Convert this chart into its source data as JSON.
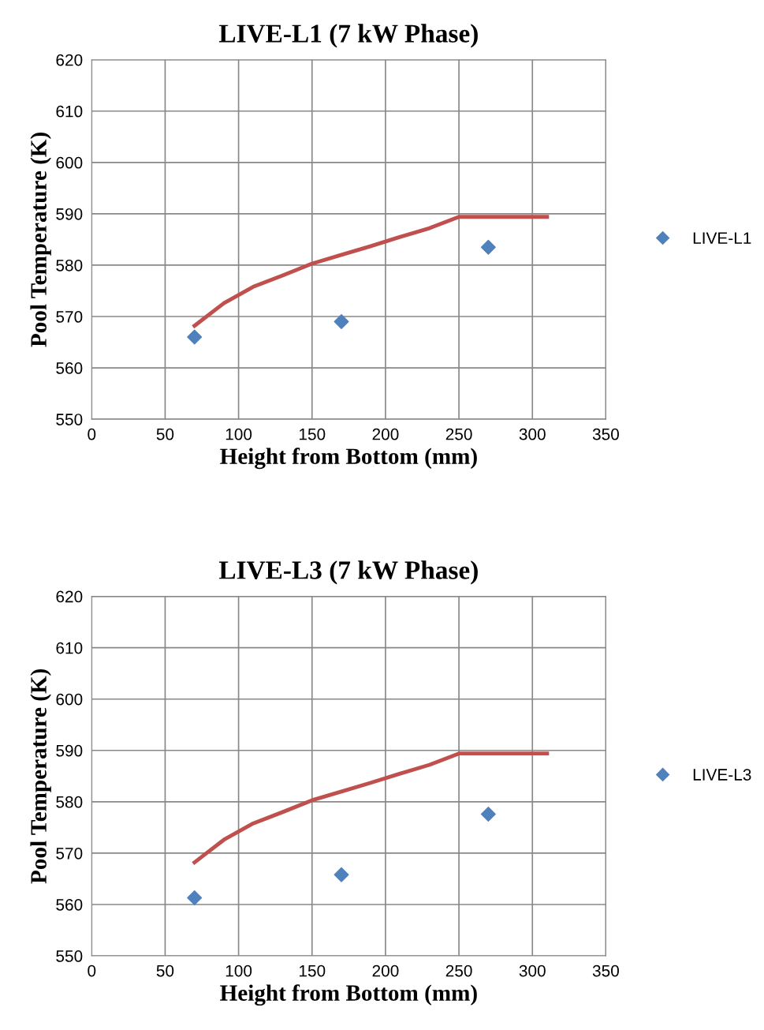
{
  "chart_data": [
    {
      "type": "scatter",
      "title": "LIVE-L1 (7 kW Phase)",
      "xlabel": "Height from Bottom (mm)",
      "ylabel": "Pool Temperature (K)",
      "xlim": [
        0,
        350
      ],
      "xticks": [
        0,
        50,
        100,
        150,
        200,
        250,
        300,
        350
      ],
      "ylim": [
        550,
        620
      ],
      "yticks": [
        550,
        560,
        570,
        580,
        590,
        600,
        610,
        620
      ],
      "grid": true,
      "legend": "right",
      "series": [
        {
          "name": "LIVE-L1",
          "marker": "diamond",
          "color": "#4f81bd",
          "x": [
            70,
            170,
            270
          ],
          "values": [
            566,
            569,
            583.5
          ]
        },
        {
          "type": "line",
          "color": "#c0504d",
          "marker": "none",
          "x": [
            70,
            90,
            110,
            130,
            150,
            170,
            190,
            210,
            230,
            250,
            310
          ],
          "values": [
            568.2,
            572.6,
            575.8,
            578,
            580.3,
            582,
            583.7,
            585.5,
            587.2,
            589.4,
            589.4
          ]
        }
      ]
    },
    {
      "type": "scatter",
      "title": "LIVE-L3 (7 kW Phase)",
      "xlabel": "Height from Bottom (mm)",
      "ylabel": "Pool Temperature (K)",
      "xlim": [
        0,
        350
      ],
      "xticks": [
        0,
        50,
        100,
        150,
        200,
        250,
        300,
        350
      ],
      "ylim": [
        550,
        620
      ],
      "yticks": [
        550,
        560,
        570,
        580,
        590,
        600,
        610,
        620
      ],
      "grid": true,
      "legend": "right",
      "series": [
        {
          "name": "LIVE-L3",
          "marker": "diamond",
          "color": "#4f81bd",
          "x": [
            70,
            170,
            270
          ],
          "values": [
            561.3,
            565.8,
            577.6
          ]
        },
        {
          "type": "line",
          "color": "#c0504d",
          "marker": "none",
          "x": [
            70,
            90,
            110,
            130,
            150,
            170,
            190,
            210,
            230,
            250,
            310
          ],
          "values": [
            568.2,
            572.6,
            575.8,
            578,
            580.3,
            582,
            583.7,
            585.5,
            587.2,
            589.4,
            589.4
          ]
        }
      ]
    }
  ]
}
